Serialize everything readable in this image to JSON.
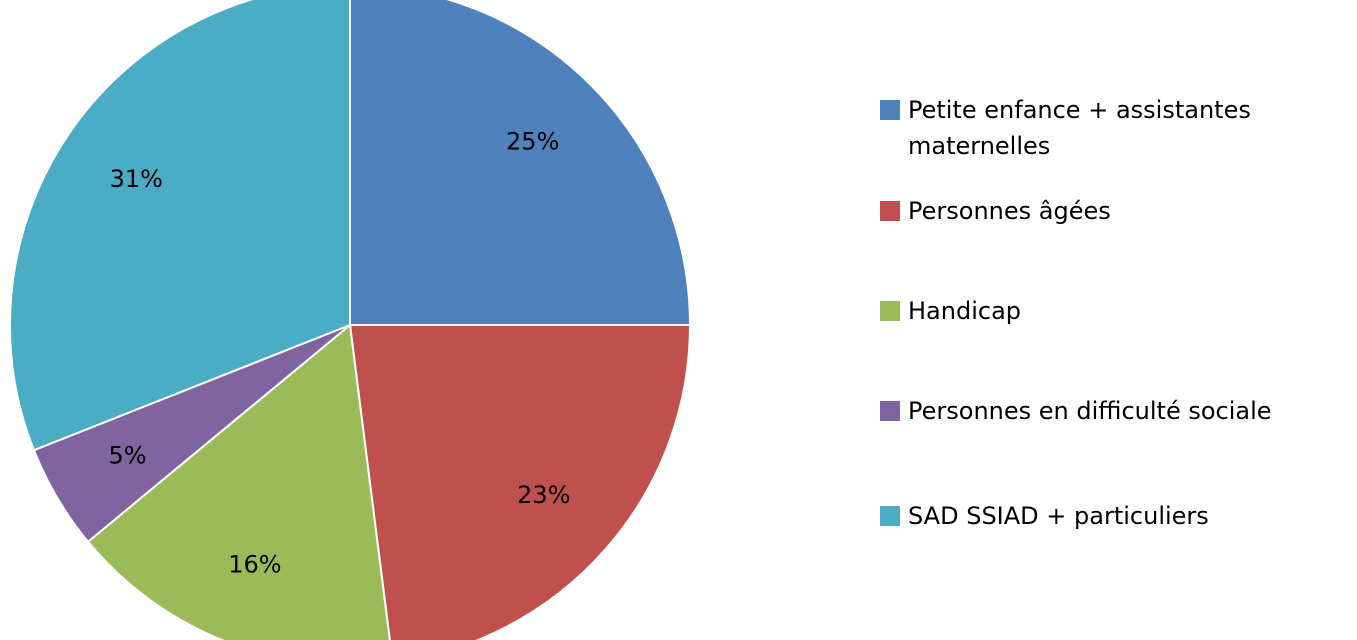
{
  "chart_data": {
    "type": "pie",
    "categories": [
      "Petite enfance + assistantes maternelles",
      "Personnes âgées",
      "Handicap",
      "Personnes en difficulté sociale",
      "SAD SSIAD + particuliers"
    ],
    "values": [
      25,
      23,
      16,
      5,
      31
    ],
    "value_labels": [
      "25%",
      "23%",
      "16%",
      "5%",
      "31%"
    ],
    "colors": [
      "#4f81bd",
      "#c0504d",
      "#9bbb59",
      "#8064a2",
      "#4bacc6"
    ],
    "legend": "right"
  }
}
